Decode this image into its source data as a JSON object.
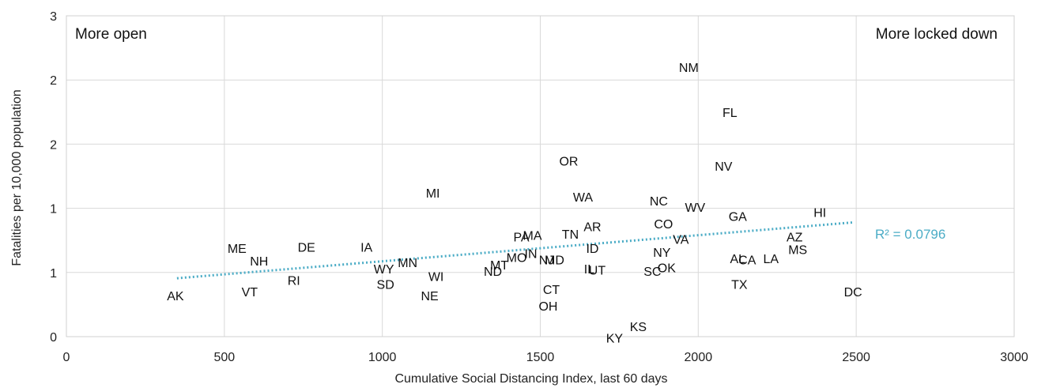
{
  "chart_data": {
    "type": "scatter",
    "title": "",
    "xlabel": "Cumulative Social Distancing Index, last 60 days",
    "ylabel": "Fatalities per 10,000 population",
    "xlim": [
      0,
      3000
    ],
    "ylim": [
      0,
      2
    ],
    "x_ticks": [
      {
        "value": 0,
        "label": "0"
      },
      {
        "value": 500,
        "label": "500"
      },
      {
        "value": 1000,
        "label": "1000"
      },
      {
        "value": 1500,
        "label": "1500"
      },
      {
        "value": 2000,
        "label": "2000"
      },
      {
        "value": 2500,
        "label": "2500"
      },
      {
        "value": 3000,
        "label": "3000"
      }
    ],
    "y_ticks": [
      {
        "value": 0,
        "label": "0"
      },
      {
        "value": 0.5,
        "label": "1"
      },
      {
        "value": 1,
        "label": "1"
      },
      {
        "value": 1.5,
        "label": "2"
      },
      {
        "value": 2,
        "label": "2"
      },
      {
        "value": 2.5,
        "label": "3"
      }
    ],
    "grid": true,
    "annotations": {
      "left": "More open",
      "right": "More locked down"
    },
    "trendline": {
      "x": [
        350,
        2490
      ],
      "y": [
        0.455,
        0.89
      ],
      "label": "R² = 0.0796",
      "color": "#4BACC6"
    },
    "points": [
      {
        "label": "AK",
        "x": 345,
        "y": 0.32
      },
      {
        "label": "ME",
        "x": 540,
        "y": 0.69
      },
      {
        "label": "NH",
        "x": 610,
        "y": 0.59
      },
      {
        "label": "VT",
        "x": 580,
        "y": 0.35
      },
      {
        "label": "DE",
        "x": 760,
        "y": 0.7
      },
      {
        "label": "RI",
        "x": 720,
        "y": 0.44
      },
      {
        "label": "IA",
        "x": 950,
        "y": 0.7
      },
      {
        "label": "WY",
        "x": 1005,
        "y": 0.53
      },
      {
        "label": "SD",
        "x": 1010,
        "y": 0.41
      },
      {
        "label": "MN",
        "x": 1080,
        "y": 0.58
      },
      {
        "label": "MI",
        "x": 1160,
        "y": 1.12
      },
      {
        "label": "WI",
        "x": 1170,
        "y": 0.47
      },
      {
        "label": "NE",
        "x": 1150,
        "y": 0.32
      },
      {
        "label": "MT",
        "x": 1370,
        "y": 0.56
      },
      {
        "label": "ND",
        "x": 1350,
        "y": 0.51
      },
      {
        "label": "MO",
        "x": 1425,
        "y": 0.62
      },
      {
        "label": "PA",
        "x": 1440,
        "y": 0.78
      },
      {
        "label": "MA",
        "x": 1475,
        "y": 0.79
      },
      {
        "label": "IN",
        "x": 1470,
        "y": 0.65
      },
      {
        "label": "NJ",
        "x": 1520,
        "y": 0.6
      },
      {
        "label": "MD",
        "x": 1545,
        "y": 0.6
      },
      {
        "label": "CT",
        "x": 1535,
        "y": 0.37
      },
      {
        "label": "OH",
        "x": 1525,
        "y": 0.24
      },
      {
        "label": "OR",
        "x": 1590,
        "y": 1.37
      },
      {
        "label": "TN",
        "x": 1595,
        "y": 0.8
      },
      {
        "label": "WA",
        "x": 1635,
        "y": 1.09
      },
      {
        "label": "AR",
        "x": 1665,
        "y": 0.86
      },
      {
        "label": "ID",
        "x": 1665,
        "y": 0.69
      },
      {
        "label": "IL",
        "x": 1655,
        "y": 0.53
      },
      {
        "label": "UT",
        "x": 1680,
        "y": 0.52
      },
      {
        "label": "KY",
        "x": 1735,
        "y": -0.01
      },
      {
        "label": "KS",
        "x": 1810,
        "y": 0.08
      },
      {
        "label": "NC",
        "x": 1875,
        "y": 1.06
      },
      {
        "label": "CO",
        "x": 1890,
        "y": 0.88
      },
      {
        "label": "NY",
        "x": 1885,
        "y": 0.66
      },
      {
        "label": "OK",
        "x": 1900,
        "y": 0.54
      },
      {
        "label": "SC",
        "x": 1855,
        "y": 0.51
      },
      {
        "label": "VA",
        "x": 1945,
        "y": 0.76
      },
      {
        "label": "NM",
        "x": 1970,
        "y": 2.1
      },
      {
        "label": "WV",
        "x": 1990,
        "y": 1.01
      },
      {
        "label": "NV",
        "x": 2080,
        "y": 1.33
      },
      {
        "label": "FL",
        "x": 2100,
        "y": 1.75
      },
      {
        "label": "GA",
        "x": 2125,
        "y": 0.94
      },
      {
        "label": "AL",
        "x": 2125,
        "y": 0.61
      },
      {
        "label": "CA",
        "x": 2155,
        "y": 0.6
      },
      {
        "label": "TX",
        "x": 2130,
        "y": 0.41
      },
      {
        "label": "LA",
        "x": 2230,
        "y": 0.61
      },
      {
        "label": "AZ",
        "x": 2305,
        "y": 0.78
      },
      {
        "label": "MS",
        "x": 2315,
        "y": 0.68
      },
      {
        "label": "HI",
        "x": 2385,
        "y": 0.97
      },
      {
        "label": "DC",
        "x": 2490,
        "y": 0.35
      }
    ]
  }
}
